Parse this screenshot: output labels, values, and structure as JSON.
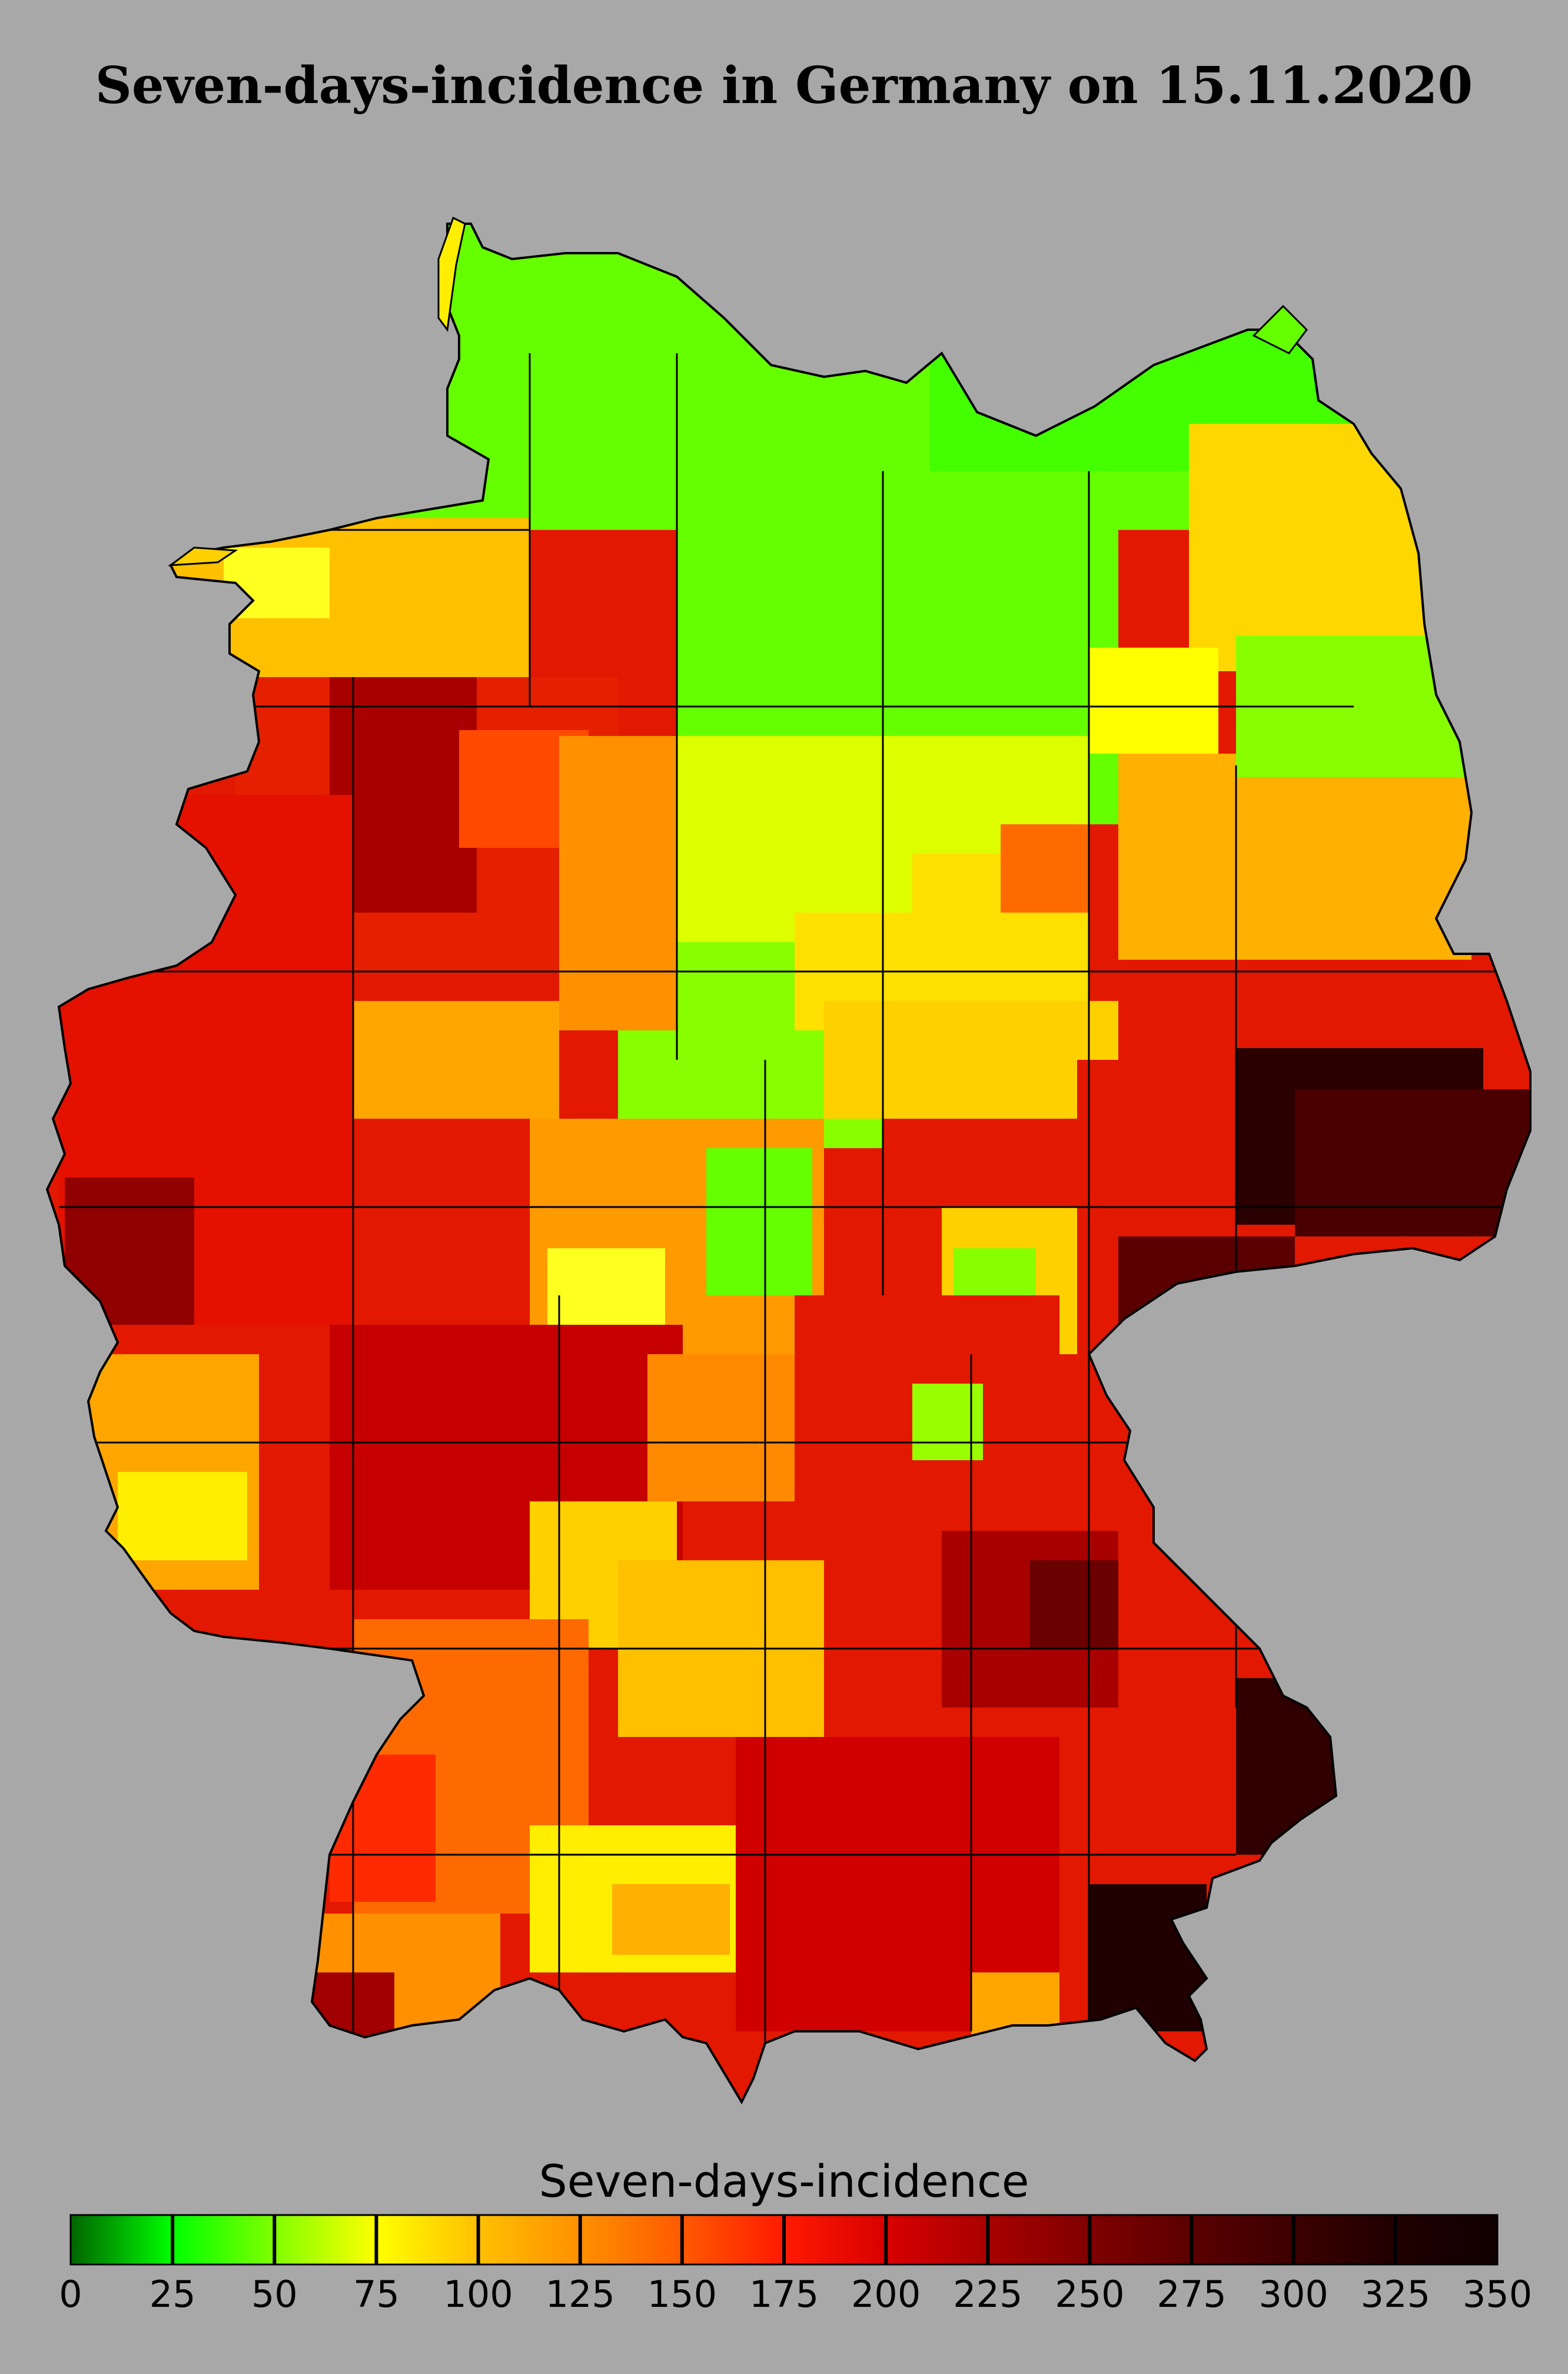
{
  "title": "Seven-days-incidence in Germany on 15.11.2020",
  "legend": {
    "title": "Seven-days-incidence",
    "min": 0,
    "max": 350,
    "ticks": [
      "0",
      "25",
      "50",
      "75",
      "100",
      "125",
      "150",
      "175",
      "200",
      "225",
      "250",
      "275",
      "300",
      "325",
      "350"
    ],
    "color_stops": [
      "#006400",
      "#00ff00",
      "#80ff00",
      "#ffff00",
      "#ffc000",
      "#ff9000",
      "#ff5a00",
      "#ff1a00",
      "#d80000",
      "#a80000",
      "#800000",
      "#5a0000",
      "#3c0000",
      "#200000",
      "#100000"
    ]
  },
  "map": {
    "country": "Germany",
    "date": "15.11.2020",
    "regions_north": "low incidence (green)",
    "regions_south": "high incidence (red)"
  }
}
